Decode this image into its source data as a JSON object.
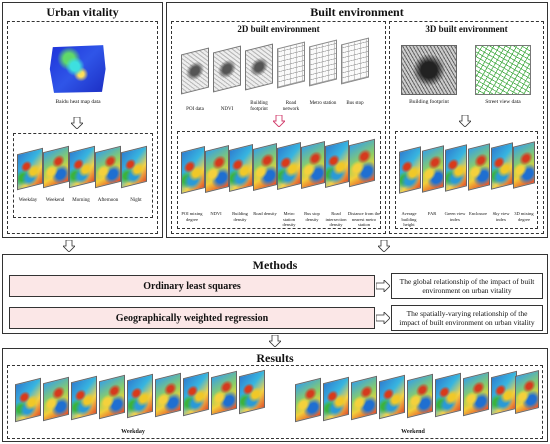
{
  "urban_vitality": {
    "title": "Urban vitality",
    "source_label": "Baidu heat map data",
    "periods": [
      "Weekday",
      "Weekend",
      "Morning",
      "Afternoon",
      "Night"
    ]
  },
  "built_environment": {
    "title": "Built environment",
    "two_d": {
      "title": "2D built environment",
      "inputs": [
        "POI data",
        "NDVI",
        "Building footprint",
        "Road network",
        "Metro station",
        "Bus stop"
      ],
      "outputs": [
        "POI mixing degree",
        "NDVI",
        "Building density",
        "Road density",
        "Metro station density",
        "Bus stop density",
        "Road intersection density",
        "Distance from the nearest metro station"
      ]
    },
    "three_d": {
      "title": "3D built environment",
      "inputs": [
        "Building footprint",
        "Street view data"
      ],
      "outputs": [
        "Average building height",
        "FAR",
        "Green view index",
        "Enclosure",
        "Sky view index",
        "3D mixing degree"
      ]
    }
  },
  "methods": {
    "title": "Methods",
    "ols": {
      "label": "Ordinary least squares",
      "result": "The global relationship of the impact of built environment on urban vitality"
    },
    "gwr": {
      "label": "Geographically weighted regression",
      "result": "The spatially-varying relationship of the impact of built environment on urban vitality"
    }
  },
  "results": {
    "title": "Results",
    "weekday_label": "Weekday",
    "weekend_label": "Weekend"
  }
}
